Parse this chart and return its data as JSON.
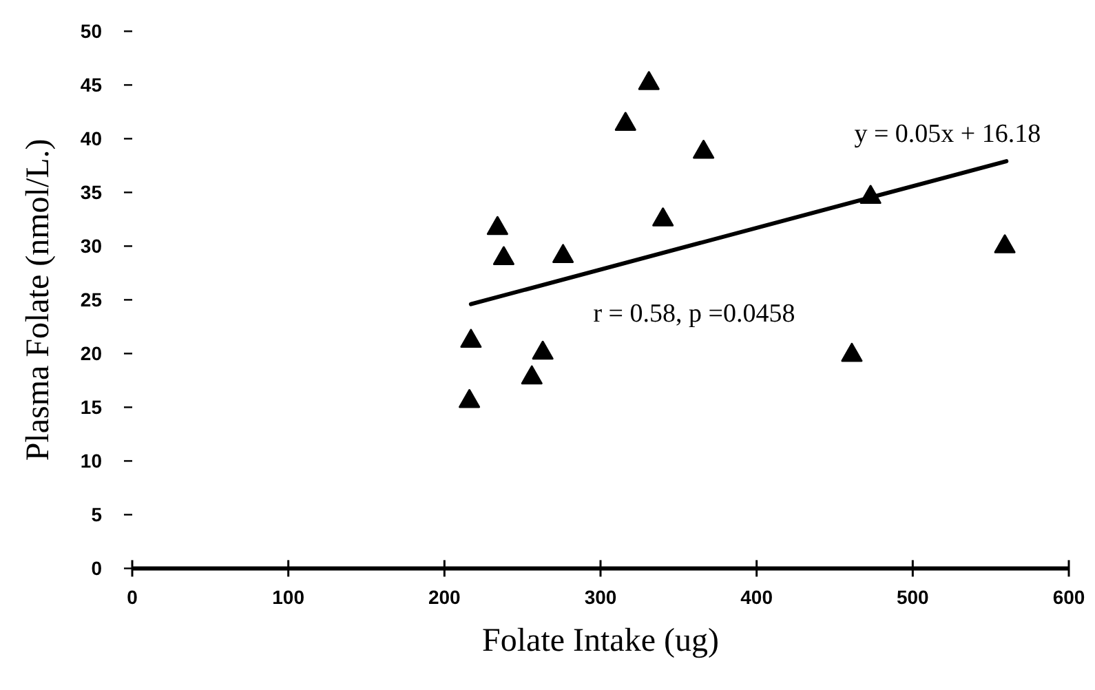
{
  "chart_data": {
    "type": "scatter",
    "xlabel": "Folate Intake (ug)",
    "ylabel": "Plasma Folate (nmol/L.)",
    "xlim": [
      0,
      600
    ],
    "xticks": [
      0,
      100,
      200,
      300,
      400,
      500,
      600
    ],
    "ylim": [
      0,
      50
    ],
    "yticks": [
      0,
      5,
      10,
      15,
      20,
      25,
      30,
      35,
      40,
      45,
      50
    ],
    "grid": false,
    "marker": "triangle",
    "series": [
      {
        "color": "#000000",
        "x": [
          234,
          238,
          217,
          216,
          256,
          263,
          331,
          316,
          366,
          340,
          276,
          473,
          559,
          461
        ],
        "values": [
          31.8,
          29.0,
          21.3,
          15.7,
          17.9,
          20.2,
          45.3,
          41.5,
          38.9,
          32.6,
          29.2,
          34.7,
          30.1,
          20.0
        ]
      },
      {
        "type": "line",
        "color": "#000000",
        "marker": "none",
        "x": [
          217,
          560
        ],
        "values": [
          24.6,
          37.9
        ]
      }
    ],
    "annotations": [
      {
        "text": "y = 0.05x + 16.18",
        "x": 560,
        "y": 37.9
      },
      "r = 0.58,  p =0.0458"
    ]
  }
}
